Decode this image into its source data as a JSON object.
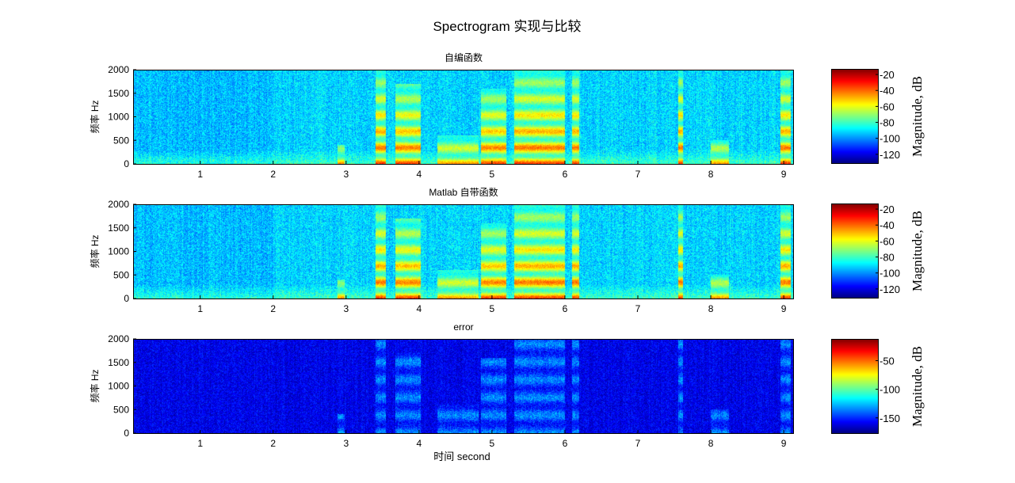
{
  "chart_data": {
    "title": "Spectrogram 实现与比较",
    "xlabel": "时间 second",
    "panels": [
      {
        "type": "heatmap",
        "title": "自编函数",
        "ylabel": "频率 Hz",
        "xlim": [
          0.08,
          9.14
        ],
        "ylim": [
          0,
          2000
        ],
        "xticks": [
          1,
          2,
          3,
          4,
          5,
          6,
          7,
          8,
          9
        ],
        "yticks": [
          0,
          500,
          1000,
          1500,
          2000
        ],
        "colormap": "jet",
        "colorbar": {
          "label": "Magnitude, dB",
          "range": [
            -132,
            -13
          ],
          "ticks": [
            -20,
            -40,
            -60,
            -80,
            -100,
            -120
          ]
        }
      },
      {
        "type": "heatmap",
        "title": "Matlab 自带函数",
        "ylabel": "频率 Hz",
        "xlim": [
          0.08,
          9.14
        ],
        "ylim": [
          0,
          2000
        ],
        "xticks": [
          1,
          2,
          3,
          4,
          5,
          6,
          7,
          8,
          9
        ],
        "yticks": [
          0,
          500,
          1000,
          1500,
          2000
        ],
        "colormap": "jet",
        "colorbar": {
          "label": "Magnitude, dB",
          "range": [
            -132,
            -13
          ],
          "ticks": [
            -20,
            -40,
            -60,
            -80,
            -100,
            -120
          ]
        }
      },
      {
        "type": "heatmap",
        "title": "error",
        "ylabel": "频率 Hz",
        "xlim": [
          0.08,
          9.14
        ],
        "ylim": [
          0,
          2000
        ],
        "xticks": [
          1,
          2,
          3,
          4,
          5,
          6,
          7,
          8,
          9
        ],
        "yticks": [
          0,
          500,
          1000,
          1500,
          2000
        ],
        "colormap": "jet",
        "colorbar": {
          "label": "Magnitude, dB",
          "range": [
            -178,
            -12
          ],
          "ticks": [
            -50,
            -100,
            -150
          ]
        }
      }
    ],
    "high_energy_segments_s": [
      {
        "start": 2.88,
        "end": 2.98,
        "max_freq_hz": 400
      },
      {
        "start": 3.4,
        "end": 3.55,
        "max_freq_hz": 2000
      },
      {
        "start": 3.68,
        "end": 4.02,
        "max_freq_hz": 1700
      },
      {
        "start": 4.25,
        "end": 4.82,
        "max_freq_hz": 600
      },
      {
        "start": 4.85,
        "end": 5.2,
        "max_freq_hz": 1600
      },
      {
        "start": 5.3,
        "end": 6.0,
        "max_freq_hz": 2000
      },
      {
        "start": 6.1,
        "end": 6.2,
        "max_freq_hz": 2000
      },
      {
        "start": 7.55,
        "end": 7.62,
        "max_freq_hz": 2000
      },
      {
        "start": 8.0,
        "end": 8.25,
        "max_freq_hz": 500
      },
      {
        "start": 8.95,
        "end": 9.1,
        "max_freq_hz": 2000
      }
    ]
  }
}
